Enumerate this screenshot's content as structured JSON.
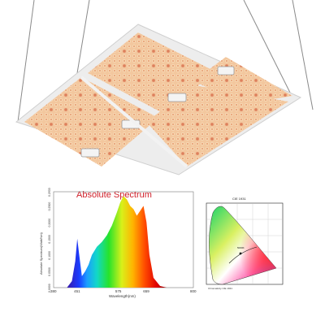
{
  "spectrum": {
    "title": "Absolute Spectrum",
    "ylabel": "Absolute Spectrum(Watt/Nm)",
    "xlabel": "Wavelength(nm)",
    "x_ticks": [
      "380",
      "451",
      "575",
      "659",
      "800"
    ],
    "y_ticks": [
      "0.0000",
      "0.0500",
      "0.1000",
      "0.1500",
      "0.2000",
      "0.2500",
      "0.2933"
    ]
  },
  "cie": {
    "title": "CIE 1931",
    "curve_label": "5000K",
    "caption": "Chromaticity CIE 1931"
  },
  "chart_data": {
    "type": "area",
    "title": "Absolute Spectrum",
    "xlabel": "Wavelength(nm)",
    "ylabel": "Absolute Spectrum(Watt/Nm)",
    "xlim": [
      380,
      800
    ],
    "ylim": [
      0,
      0.2933
    ],
    "x": [
      420,
      435,
      445,
      451,
      457,
      465,
      475,
      485,
      495,
      510,
      525,
      540,
      555,
      570,
      580,
      590,
      600,
      610,
      620,
      630,
      640,
      650,
      659,
      668,
      680,
      700,
      720
    ],
    "values": [
      0.0,
      0.02,
      0.08,
      0.15,
      0.1,
      0.035,
      0.05,
      0.07,
      0.1,
      0.125,
      0.14,
      0.16,
      0.19,
      0.23,
      0.26,
      0.28,
      0.27,
      0.25,
      0.24,
      0.22,
      0.235,
      0.25,
      0.2,
      0.1,
      0.03,
      0.005,
      0.0
    ]
  }
}
